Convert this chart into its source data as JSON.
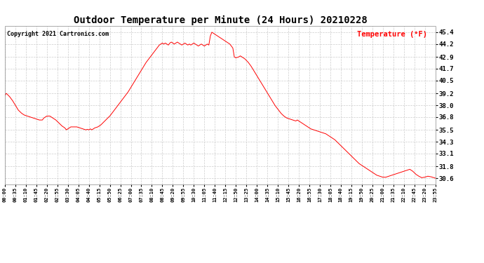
{
  "title": "Outdoor Temperature per Minute (24 Hours) 20210228",
  "copyright_text": "Copyright 2021 Cartronics.com",
  "legend_label": "Temperature (°F)",
  "line_color": "red",
  "background_color": "white",
  "grid_color": "#cccccc",
  "yticks": [
    30.6,
    31.8,
    33.1,
    34.3,
    35.5,
    36.8,
    38.0,
    39.2,
    40.5,
    41.7,
    42.9,
    44.2,
    45.4
  ],
  "ylim": [
    30.0,
    46.0
  ],
  "total_minutes": 1436,
  "xtick_interval": 35,
  "key_points": {
    "0": 39.0,
    "5": 39.2,
    "15": 38.9,
    "25": 38.5,
    "35": 38.0,
    "45": 37.5,
    "55": 37.2,
    "65": 37.0,
    "75": 36.9,
    "85": 36.8,
    "95": 36.7,
    "105": 36.6,
    "115": 36.5,
    "125": 36.5,
    "130": 36.7,
    "140": 36.9,
    "150": 36.9,
    "155": 36.8,
    "160": 36.7,
    "165": 36.6,
    "170": 36.5,
    "180": 36.2,
    "190": 35.9,
    "200": 35.7,
    "205": 35.5,
    "210": 35.6,
    "215": 35.7,
    "220": 35.8,
    "230": 35.8,
    "240": 35.8,
    "250": 35.7,
    "260": 35.6,
    "270": 35.5,
    "275": 35.55,
    "280": 35.5,
    "285": 35.6,
    "290": 35.5,
    "295": 35.6,
    "300": 35.7,
    "310": 35.8,
    "320": 36.0,
    "330": 36.3,
    "340": 36.6,
    "350": 36.9,
    "360": 37.3,
    "370": 37.7,
    "380": 38.1,
    "390": 38.5,
    "400": 38.9,
    "410": 39.3,
    "420": 39.8,
    "430": 40.3,
    "440": 40.8,
    "450": 41.3,
    "460": 41.8,
    "470": 42.3,
    "480": 42.7,
    "490": 43.1,
    "500": 43.5,
    "510": 43.9,
    "515": 44.1,
    "520": 44.2,
    "525": 44.3,
    "530": 44.2,
    "535": 44.3,
    "540": 44.2,
    "545": 44.1,
    "550": 44.3,
    "555": 44.4,
    "560": 44.3,
    "565": 44.2,
    "570": 44.3,
    "575": 44.4,
    "580": 44.3,
    "585": 44.2,
    "590": 44.1,
    "595": 44.2,
    "600": 44.3,
    "605": 44.2,
    "610": 44.1,
    "615": 44.2,
    "620": 44.1,
    "625": 44.2,
    "630": 44.3,
    "635": 44.2,
    "640": 44.1,
    "645": 44.0,
    "650": 44.1,
    "655": 44.2,
    "660": 44.1,
    "665": 44.0,
    "670": 44.1,
    "675": 44.2,
    "680": 44.1,
    "685": 45.0,
    "690": 45.4,
    "695": 45.3,
    "700": 45.2,
    "705": 45.1,
    "710": 45.0,
    "715": 44.9,
    "720": 44.8,
    "730": 44.6,
    "740": 44.4,
    "750": 44.2,
    "760": 43.8,
    "765": 42.9,
    "770": 42.8,
    "780": 42.9,
    "785": 43.0,
    "790": 42.9,
    "800": 42.7,
    "810": 42.4,
    "820": 42.0,
    "830": 41.5,
    "840": 41.0,
    "850": 40.5,
    "860": 40.0,
    "870": 39.5,
    "880": 39.0,
    "890": 38.5,
    "900": 38.0,
    "910": 37.6,
    "920": 37.2,
    "930": 36.9,
    "940": 36.7,
    "950": 36.6,
    "960": 36.5,
    "970": 36.4,
    "975": 36.5,
    "980": 36.4,
    "985": 36.3,
    "990": 36.2,
    "1000": 36.0,
    "1010": 35.8,
    "1020": 35.6,
    "1030": 35.5,
    "1040": 35.4,
    "1050": 35.3,
    "1060": 35.2,
    "1070": 35.1,
    "1080": 34.9,
    "1090": 34.7,
    "1100": 34.5,
    "1110": 34.2,
    "1120": 33.9,
    "1130": 33.6,
    "1140": 33.3,
    "1150": 33.0,
    "1160": 32.7,
    "1170": 32.4,
    "1180": 32.1,
    "1190": 31.9,
    "1200": 31.7,
    "1210": 31.5,
    "1220": 31.3,
    "1230": 31.1,
    "1240": 30.9,
    "1250": 30.8,
    "1260": 30.7,
    "1270": 30.7,
    "1280": 30.8,
    "1290": 30.9,
    "1300": 31.0,
    "1310": 31.1,
    "1320": 31.2,
    "1330": 31.3,
    "1340": 31.4,
    "1350": 31.5,
    "1360": 31.3,
    "1370": 31.0,
    "1380": 30.8,
    "1390": 30.65,
    "1400": 30.7,
    "1410": 30.8,
    "1420": 30.75,
    "1430": 30.65,
    "1436": 30.6
  }
}
